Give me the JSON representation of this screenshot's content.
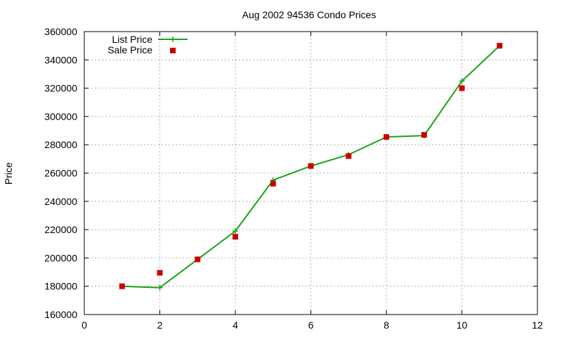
{
  "chart_data": {
    "type": "line",
    "title": "Aug 2002 94536 Condo Prices",
    "xlabel": "",
    "ylabel": "Price",
    "xlim": [
      0,
      12
    ],
    "ylim": [
      160000,
      360000
    ],
    "x_ticks": [
      0,
      2,
      4,
      6,
      8,
      10,
      12
    ],
    "y_ticks": [
      160000,
      180000,
      200000,
      220000,
      240000,
      260000,
      280000,
      300000,
      320000,
      340000,
      360000
    ],
    "grid": true,
    "legend_position": "top-left",
    "series": [
      {
        "name": "List Price",
        "style": "line+cross",
        "color": "#1aa31a",
        "x": [
          1,
          2,
          3,
          4,
          5,
          6,
          7,
          8,
          9,
          10,
          11
        ],
        "y": [
          180000,
          179000,
          199000,
          219000,
          255000,
          265000,
          273000,
          285500,
          286500,
          325000,
          350000
        ]
      },
      {
        "name": "Sale Price",
        "style": "square-points",
        "color": "#cc0000",
        "x": [
          1,
          2,
          3,
          4,
          5,
          6,
          7,
          8,
          9,
          10,
          11
        ],
        "y": [
          180000,
          189500,
          199000,
          215000,
          252500,
          265000,
          272000,
          285500,
          287000,
          320000,
          350000
        ]
      }
    ]
  }
}
